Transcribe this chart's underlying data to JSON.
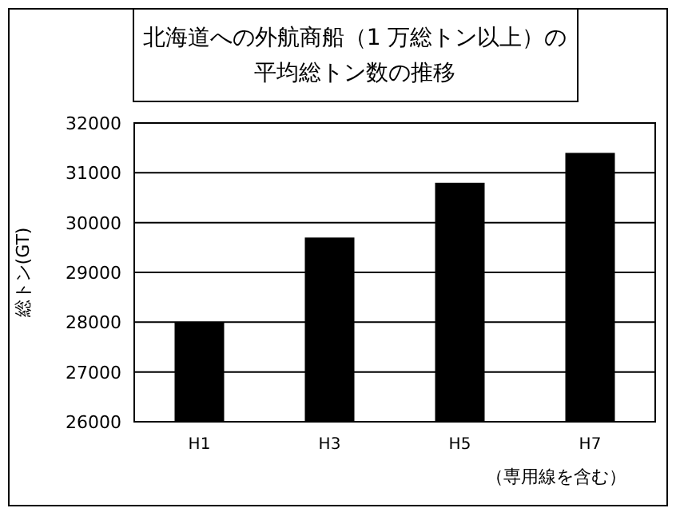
{
  "chart_data": {
    "type": "bar",
    "title": "北海道への外航商船（1 万総トン以上）の平均総トン数の推移",
    "ylabel": "総トン(GT)",
    "categories": [
      "H1",
      "H3",
      "H5",
      "H7"
    ],
    "values": [
      28000,
      29700,
      30800,
      31400
    ],
    "color": "#000000",
    "ylim": [
      26000,
      32000
    ],
    "yticks": [
      26000,
      27000,
      28000,
      29000,
      30000,
      31000,
      32000
    ],
    "grid": "y",
    "annotations": [
      "（専用線を含む）"
    ]
  }
}
